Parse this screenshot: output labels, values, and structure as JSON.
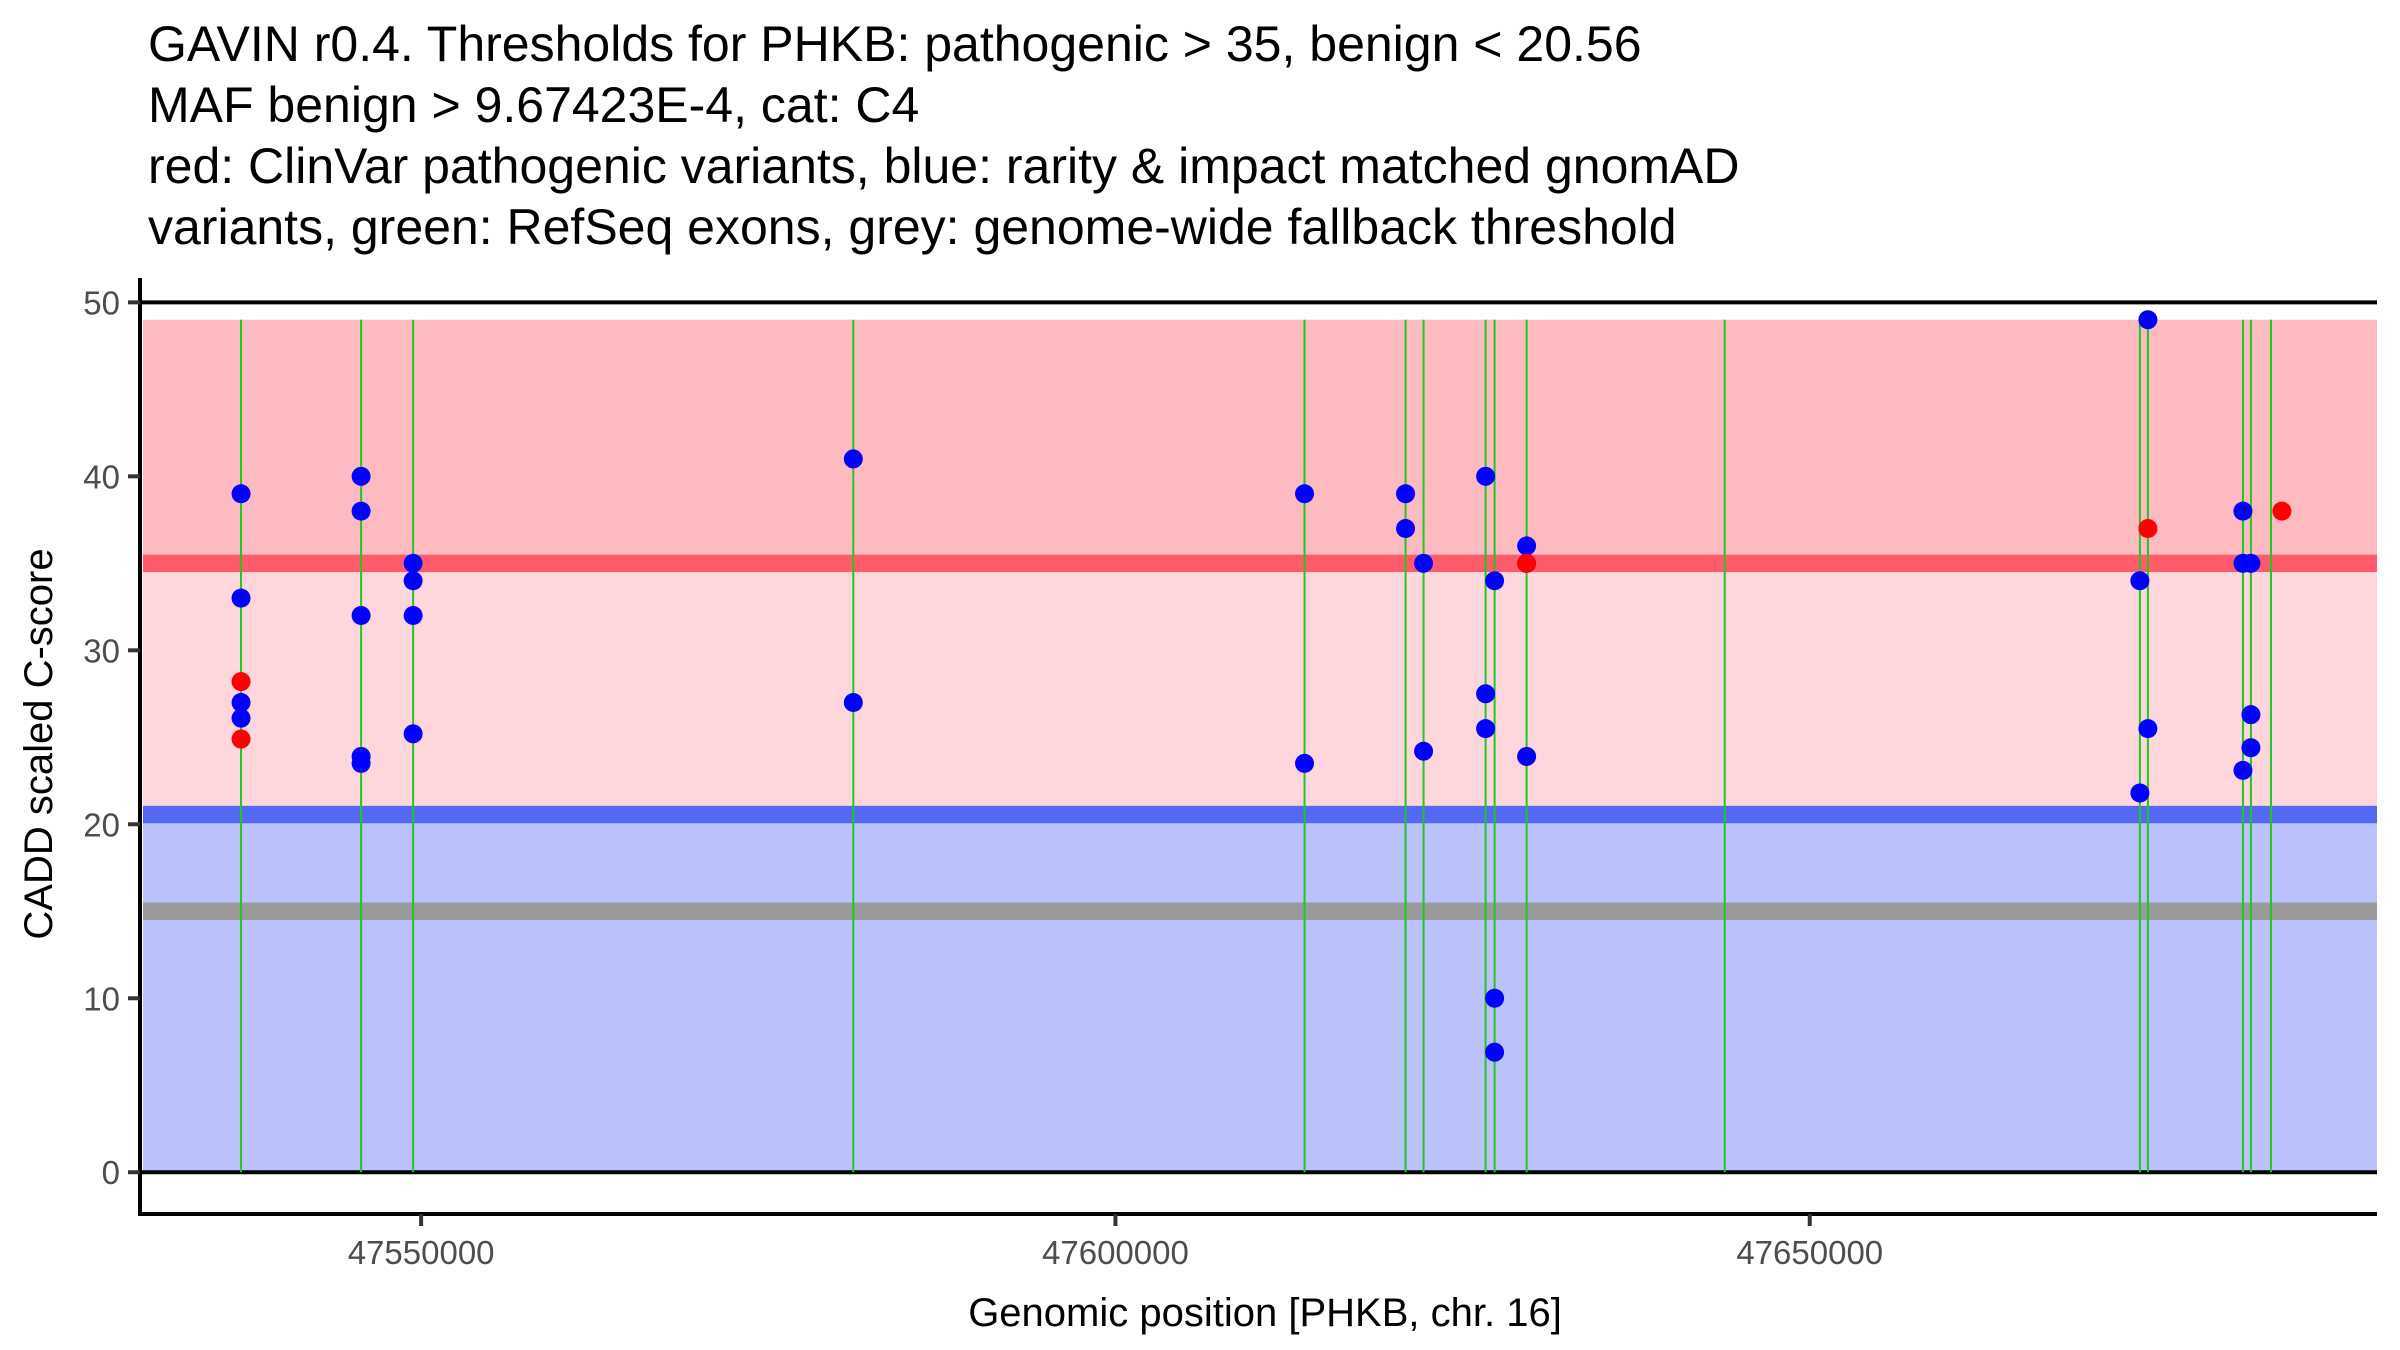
{
  "title": {
    "lines": [
      "GAVIN r0.4. Thresholds for PHKB: pathogenic > 35, benign < 20.56",
      "MAF benign > 9.67423E-4, cat: C4",
      "red: ClinVar pathogenic variants, blue: rarity & impact matched gnomAD",
      "variants, green: RefSeq exons, grey: genome-wide fallback threshold"
    ]
  },
  "colors": {
    "pathogenic_region": "#fdbbc1",
    "pathogenic_threshold": "#ff5c6b",
    "intermediate_region": "#fed6db",
    "benign_threshold": "#5468f4",
    "benign_region": "#bbc1fa",
    "fallback_threshold": "#9a9a9a",
    "exon_line": "#1ec81e",
    "clinvar_point": "#ff0000",
    "gnomad_point": "#0000ff",
    "axis": "#000000",
    "tick_label": "#4d4d4d"
  },
  "chart_data": {
    "type": "scatter",
    "title": "GAVIN r0.4. Thresholds for PHKB: pathogenic > 35, benign < 20.56",
    "xlabel": "Genomic position [PHKB, chr. 16]",
    "ylabel": "CADD scaled C-score",
    "xlim": [
      47529755,
      47690850
    ],
    "ylim": [
      -2.4,
      51.4
    ],
    "x_ticks": [
      47550000,
      47600000,
      47650000
    ],
    "x_tick_labels": [
      "47550000",
      "47600000",
      "47650000"
    ],
    "y_ticks": [
      0,
      10,
      20,
      30,
      40,
      50
    ],
    "y_tick_labels": [
      "0",
      "10",
      "20",
      "30",
      "40",
      "50"
    ],
    "grid": false,
    "legend": "none",
    "regions": [
      {
        "name": "pathogenic",
        "ymin": 35,
        "ymax": 49
      },
      {
        "name": "intermediate",
        "ymin": 20.56,
        "ymax": 35
      },
      {
        "name": "benign",
        "ymin": 0,
        "ymax": 20.56
      }
    ],
    "thresholds": [
      {
        "name": "pathogenic",
        "value": 35
      },
      {
        "name": "benign",
        "value": 20.56
      },
      {
        "name": "fallback",
        "value": 15
      }
    ],
    "reference_lines": [
      0,
      50
    ],
    "exons": [
      47537032,
      47545677,
      47549424,
      47581124,
      47613617,
      47620893,
      47622190,
      47626657,
      47627305,
      47629611,
      47643876,
      47673775,
      47674352,
      47681196,
      47681772,
      47683213
    ],
    "series": [
      {
        "name": "gnomAD (rarity & impact matched)",
        "color_key": "gnomad_point",
        "points": [
          [
            47537032,
            39.0
          ],
          [
            47537032,
            33.0
          ],
          [
            47537032,
            27.0
          ],
          [
            47537032,
            26.1
          ],
          [
            47545677,
            40.0
          ],
          [
            47545677,
            38.0
          ],
          [
            47545677,
            32.0
          ],
          [
            47545677,
            23.9
          ],
          [
            47545677,
            23.5
          ],
          [
            47549424,
            35.0
          ],
          [
            47549424,
            34.0
          ],
          [
            47549424,
            32.0
          ],
          [
            47549424,
            25.2
          ],
          [
            47581124,
            41.0
          ],
          [
            47581124,
            27.0
          ],
          [
            47613617,
            39.0
          ],
          [
            47613617,
            23.5
          ],
          [
            47620893,
            39.0
          ],
          [
            47620893,
            37.0
          ],
          [
            47622190,
            35.0
          ],
          [
            47622190,
            24.2
          ],
          [
            47626657,
            40.0
          ],
          [
            47626657,
            27.5
          ],
          [
            47626657,
            25.5
          ],
          [
            47627305,
            34.0
          ],
          [
            47627305,
            10.0
          ],
          [
            47627305,
            6.9
          ],
          [
            47629611,
            36.0
          ],
          [
            47629611,
            35.0
          ],
          [
            47629611,
            23.9
          ],
          [
            47673775,
            34.0
          ],
          [
            47673775,
            21.8
          ],
          [
            47674352,
            49.0
          ],
          [
            47674352,
            25.5
          ],
          [
            47681196,
            38.0
          ],
          [
            47681196,
            35.0
          ],
          [
            47681196,
            23.1
          ],
          [
            47681772,
            35.0
          ],
          [
            47681772,
            26.3
          ],
          [
            47681772,
            24.4
          ]
        ]
      },
      {
        "name": "ClinVar pathogenic",
        "color_key": "clinvar_point",
        "points": [
          [
            47537032,
            28.2
          ],
          [
            47537032,
            24.9
          ],
          [
            47629611,
            35.0
          ],
          [
            47674352,
            37.0
          ],
          [
            47684000,
            38.0
          ]
        ]
      }
    ]
  }
}
